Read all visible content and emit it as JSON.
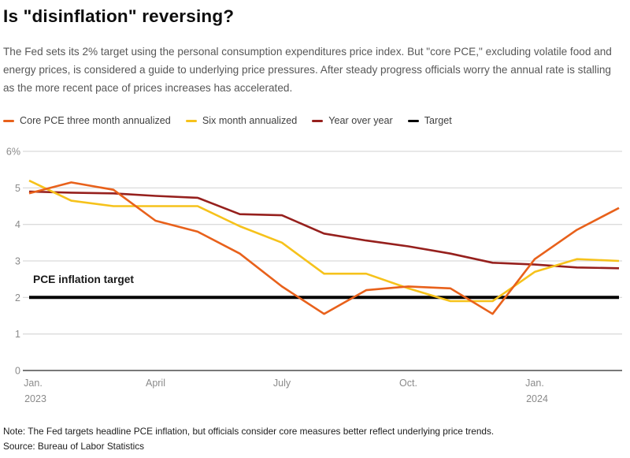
{
  "header": {
    "title": "Is \"disinflation\" reversing?",
    "subtitle": "The Fed sets its 2% target using the personal consumption expenditures price index. But \"core PCE,\" excluding volatile food and energy prices, is considered a guide to underlying price pressures. After steady progress officials worry the annual rate is stalling as the more recent pace of prices increases has accelerated."
  },
  "colors": {
    "three_month": "#E8611B",
    "six_month": "#F6C21B",
    "year_over_year": "#96201D",
    "target": "#000000",
    "gridline": "#DBDBDB",
    "zero_axis": "#4D4D4D",
    "axis_text": "#8A8A8A",
    "annotation_text": "#1A1A1A"
  },
  "chart_data": {
    "type": "line",
    "title": "Is \"disinflation\" reversing?",
    "xlabel": "",
    "ylabel": "",
    "ylim": [
      0,
      6
    ],
    "yticks": [
      0,
      1,
      2,
      3,
      4,
      5,
      6
    ],
    "ytick_top_label": "6%",
    "grid": true,
    "legend_position": "top",
    "annotation": "PCE inflation target",
    "categories": [
      "Jan. 2023",
      "Feb. 2023",
      "March 2023",
      "April 2023",
      "May 2023",
      "June 2023",
      "July 2023",
      "Aug. 2023",
      "Sep. 2023",
      "Oct. 2023",
      "Nov. 2023",
      "Dec. 2023",
      "Jan. 2024",
      "Feb. 2024",
      "March 2024"
    ],
    "x_ticks": [
      {
        "index": 0,
        "line1": "Jan.",
        "line2": "2023"
      },
      {
        "index": 3,
        "line1": "April",
        "line2": ""
      },
      {
        "index": 6,
        "line1": "July",
        "line2": ""
      },
      {
        "index": 9,
        "line1": "Oct.",
        "line2": ""
      },
      {
        "index": 12,
        "line1": "Jan.",
        "line2": "2024"
      }
    ],
    "series": [
      {
        "name": "Core PCE three month annualized",
        "color_key": "three_month",
        "values": [
          4.85,
          5.15,
          4.95,
          4.1,
          3.8,
          3.2,
          2.3,
          1.55,
          2.2,
          2.3,
          2.25,
          1.55,
          3.05,
          3.85,
          4.45
        ]
      },
      {
        "name": "Six month annualized",
        "color_key": "six_month",
        "values": [
          5.2,
          4.65,
          4.5,
          4.5,
          4.5,
          3.95,
          3.5,
          2.65,
          2.65,
          2.25,
          1.9,
          1.9,
          2.7,
          3.05,
          3.0
        ]
      },
      {
        "name": "Year over year",
        "color_key": "year_over_year",
        "values": [
          4.9,
          4.87,
          4.85,
          4.78,
          4.73,
          4.28,
          4.25,
          3.75,
          3.56,
          3.4,
          3.2,
          2.95,
          2.9,
          2.82,
          2.8
        ]
      },
      {
        "name": "Target",
        "color_key": "target",
        "values": [
          2.0,
          2.0,
          2.0,
          2.0,
          2.0,
          2.0,
          2.0,
          2.0,
          2.0,
          2.0,
          2.0,
          2.0,
          2.0,
          2.0,
          2.0
        ]
      }
    ]
  },
  "footer": {
    "note": "Note: The Fed targets headline PCE inflation, but officials consider core measures better reflect underlying price trends.",
    "source": "Source: Bureau of Labor Statistics"
  }
}
